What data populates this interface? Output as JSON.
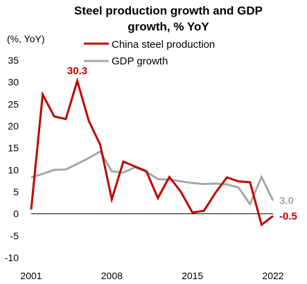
{
  "chart_data": {
    "type": "line",
    "title_line1": "Steel production growth and GDP",
    "title_line2": "growth, % YoY",
    "ylabel": "(%, YoY)",
    "xlabel": "",
    "ylim": [
      -10,
      35
    ],
    "yticks": [
      -10,
      -5,
      0,
      5,
      10,
      15,
      20,
      25,
      30,
      35
    ],
    "xlim": [
      2001,
      2022
    ],
    "xticks": [
      2001,
      2008,
      2015,
      2022
    ],
    "grid": false,
    "legend_position": "top-right",
    "x": [
      2001,
      2002,
      2003,
      2004,
      2005,
      2006,
      2007,
      2008,
      2009,
      2010,
      2011,
      2012,
      2013,
      2014,
      2015,
      2016,
      2017,
      2018,
      2019,
      2020,
      2021,
      2022
    ],
    "series": [
      {
        "name": "China steel production",
        "color": "#C00000",
        "values": [
          1.0,
          27.2,
          22.2,
          21.6,
          30.3,
          21.2,
          15.7,
          3.3,
          11.9,
          10.8,
          9.7,
          3.6,
          8.4,
          5.0,
          0.3,
          0.7,
          4.8,
          8.3,
          7.4,
          7.2,
          -2.5,
          -0.5
        ]
      },
      {
        "name": "GDP growth",
        "color": "#A6A6A6",
        "values": [
          8.3,
          9.1,
          10.0,
          10.1,
          11.4,
          12.7,
          14.2,
          9.7,
          9.4,
          10.6,
          9.6,
          7.9,
          7.8,
          7.4,
          7.0,
          6.8,
          6.9,
          6.7,
          6.0,
          2.2,
          8.4,
          3.0
        ]
      }
    ],
    "annotations": [
      {
        "text": "30.3",
        "series": 0,
        "x": 2005,
        "color": "#C00000"
      },
      {
        "text": "-0.5",
        "series": 0,
        "x": 2022,
        "color": "#C00000"
      },
      {
        "text": "3.0",
        "series": 1,
        "x": 2022,
        "color": "#A6A6A6"
      }
    ]
  }
}
